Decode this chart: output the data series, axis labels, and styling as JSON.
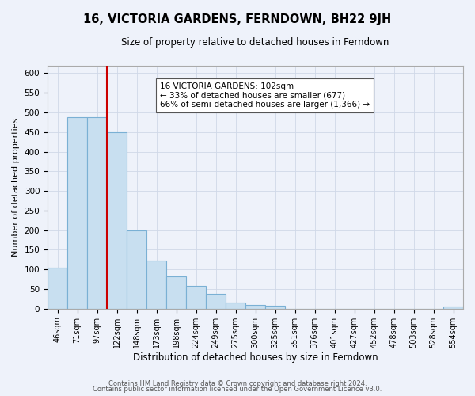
{
  "title": "16, VICTORIA GARDENS, FERNDOWN, BH22 9JH",
  "subtitle": "Size of property relative to detached houses in Ferndown",
  "xlabel": "Distribution of detached houses by size in Ferndown",
  "ylabel": "Number of detached properties",
  "footer_line1": "Contains HM Land Registry data © Crown copyright and database right 2024.",
  "footer_line2": "Contains public sector information licensed under the Open Government Licence v3.0.",
  "bar_labels": [
    "46sqm",
    "71sqm",
    "97sqm",
    "122sqm",
    "148sqm",
    "173sqm",
    "198sqm",
    "224sqm",
    "249sqm",
    "275sqm",
    "300sqm",
    "325sqm",
    "351sqm",
    "376sqm",
    "401sqm",
    "427sqm",
    "452sqm",
    "478sqm",
    "503sqm",
    "528sqm",
    "554sqm"
  ],
  "bar_values": [
    105,
    487,
    487,
    450,
    200,
    122,
    82,
    58,
    37,
    16,
    10,
    8,
    0,
    0,
    0,
    0,
    0,
    0,
    0,
    0,
    5
  ],
  "bar_color": "#c8dff0",
  "bar_edge_color": "#7ab0d4",
  "grid_color": "#d0d8e8",
  "bg_color": "#eef2fa",
  "vline_x": 2.5,
  "vline_color": "#cc0000",
  "annotation_text": "16 VICTORIA GARDENS: 102sqm\n← 33% of detached houses are smaller (677)\n66% of semi-detached houses are larger (1,366) →",
  "annotation_box_color": "#ffffff",
  "annotation_box_edge": "#555555",
  "ylim": [
    0,
    620
  ],
  "yticks": [
    0,
    50,
    100,
    150,
    200,
    250,
    300,
    350,
    400,
    450,
    500,
    550,
    600
  ]
}
